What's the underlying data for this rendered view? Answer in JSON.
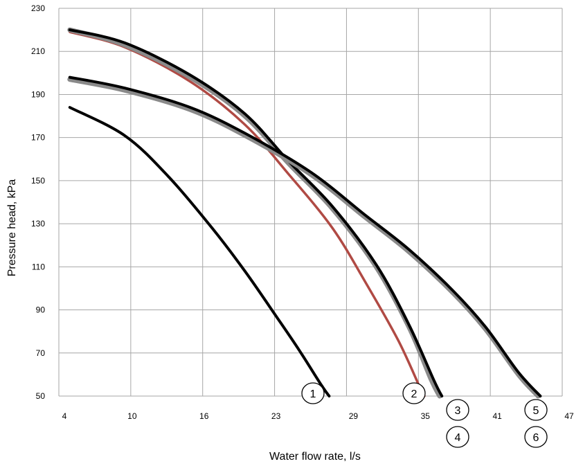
{
  "chart_data": {
    "type": "line",
    "title": "",
    "xlabel": "Water flow rate, l/s",
    "ylabel": "Pressure head, kPa",
    "xlim": [
      4,
      50
    ],
    "ylim": [
      50,
      230
    ],
    "x_ticks": [
      "4",
      "10",
      "16",
      "23",
      "29",
      "35",
      "41",
      "47"
    ],
    "y_ticks": [
      "50",
      "70",
      "90",
      "110",
      "130",
      "150",
      "170",
      "190",
      "210",
      "230"
    ],
    "grid": true,
    "colors": {
      "black": "#000000",
      "red": "#b04a44",
      "gray": "#8a8a8a",
      "grid": "#a6a6a6"
    },
    "series": [
      {
        "marker": "1",
        "color": "#000000",
        "points": [
          [
            5,
            184
          ],
          [
            10,
            171
          ],
          [
            14,
            152
          ],
          [
            18,
            128
          ],
          [
            21,
            108
          ],
          [
            24,
            86
          ],
          [
            26,
            71
          ],
          [
            28,
            55
          ],
          [
            28.7,
            50
          ]
        ]
      },
      {
        "marker": "2",
        "color": "#b04a44",
        "points": [
          [
            5,
            219
          ],
          [
            10,
            212
          ],
          [
            16,
            196
          ],
          [
            21,
            176
          ],
          [
            25,
            153
          ],
          [
            29,
            128
          ],
          [
            32,
            103
          ],
          [
            35,
            76
          ],
          [
            37,
            54
          ],
          [
            37.4,
            50
          ]
        ]
      },
      {
        "marker": "3",
        "color": "#8a8a8a",
        "points": [
          [
            5,
            220
          ],
          [
            10,
            213
          ],
          [
            16,
            198
          ],
          [
            21,
            180
          ],
          [
            25,
            158
          ],
          [
            29,
            137
          ],
          [
            33,
            110
          ],
          [
            36,
            82
          ],
          [
            38,
            58
          ],
          [
            38.8,
            50
          ]
        ]
      },
      {
        "marker": "4",
        "color": "#000000",
        "points": [
          [
            5,
            220
          ],
          [
            10,
            214
          ],
          [
            16,
            199
          ],
          [
            21,
            181
          ],
          [
            25,
            159
          ],
          [
            29,
            138
          ],
          [
            33,
            111
          ],
          [
            36,
            83
          ],
          [
            38.3,
            57
          ],
          [
            39,
            50
          ]
        ]
      },
      {
        "marker": "5",
        "color": "#8a8a8a",
        "points": [
          [
            5,
            197
          ],
          [
            10,
            192
          ],
          [
            16,
            183
          ],
          [
            21,
            171
          ],
          [
            27,
            153
          ],
          [
            32,
            133
          ],
          [
            36,
            117
          ],
          [
            40,
            98
          ],
          [
            43,
            81
          ],
          [
            46,
            60
          ],
          [
            47.8,
            50
          ]
        ]
      },
      {
        "marker": "6",
        "color": "#000000",
        "points": [
          [
            5,
            198
          ],
          [
            10,
            193
          ],
          [
            16,
            184
          ],
          [
            21,
            172
          ],
          [
            27,
            154
          ],
          [
            32,
            134
          ],
          [
            36,
            118
          ],
          [
            40,
            99
          ],
          [
            43,
            82
          ],
          [
            46,
            61
          ],
          [
            48,
            50
          ]
        ]
      }
    ],
    "annotations": [
      "1",
      "2",
      "3",
      "4",
      "5",
      "6"
    ]
  }
}
